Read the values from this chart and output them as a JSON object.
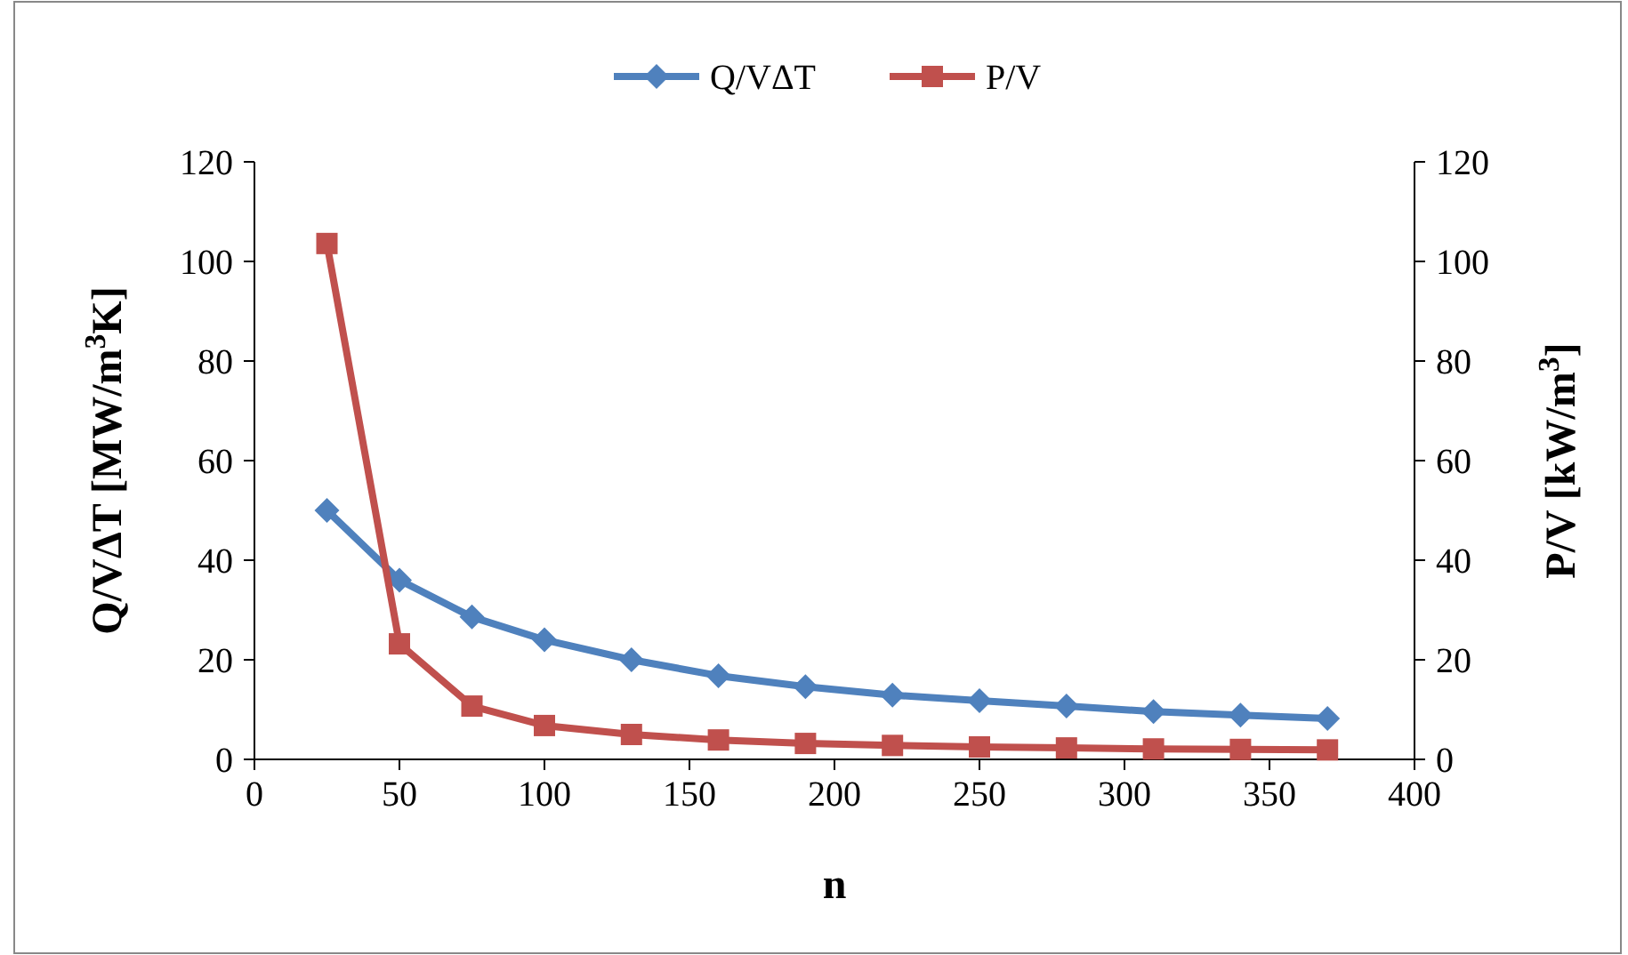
{
  "chart_data": {
    "type": "line",
    "x": [
      25,
      50,
      75,
      100,
      130,
      160,
      190,
      220,
      250,
      280,
      310,
      340,
      370
    ],
    "xlabel": "n",
    "ylabel": "Q/VΔT  [MW/m$^{3}$K]",
    "y2label": "P/V [kW/m$^{3}$]",
    "xlim": [
      0,
      400
    ],
    "xticks": [
      0,
      50,
      100,
      150,
      200,
      250,
      300,
      350,
      400
    ],
    "ylim": [
      0,
      120
    ],
    "yticks": [
      0,
      20,
      40,
      60,
      80,
      100,
      120
    ],
    "y2lim": [
      0,
      120
    ],
    "y2ticks": [
      0,
      20,
      40,
      60,
      80,
      100,
      120
    ],
    "legend": "top",
    "grid": false,
    "series": [
      {
        "name": "Q/VΔT",
        "color": "#4f81bd",
        "marker": "diamond",
        "values": [
          50,
          36,
          28.6,
          24,
          20,
          16.8,
          14.6,
          12.9,
          11.8,
          10.7,
          9.6,
          8.9,
          8.2
        ]
      },
      {
        "name": "P/V",
        "color": "#c0504d",
        "marker": "square",
        "axis": "y2",
        "values": [
          103.6,
          23.2,
          10.7,
          6.8,
          5,
          3.9,
          3.2,
          2.8,
          2.5,
          2.3,
          2.1,
          2,
          1.9
        ]
      }
    ]
  }
}
